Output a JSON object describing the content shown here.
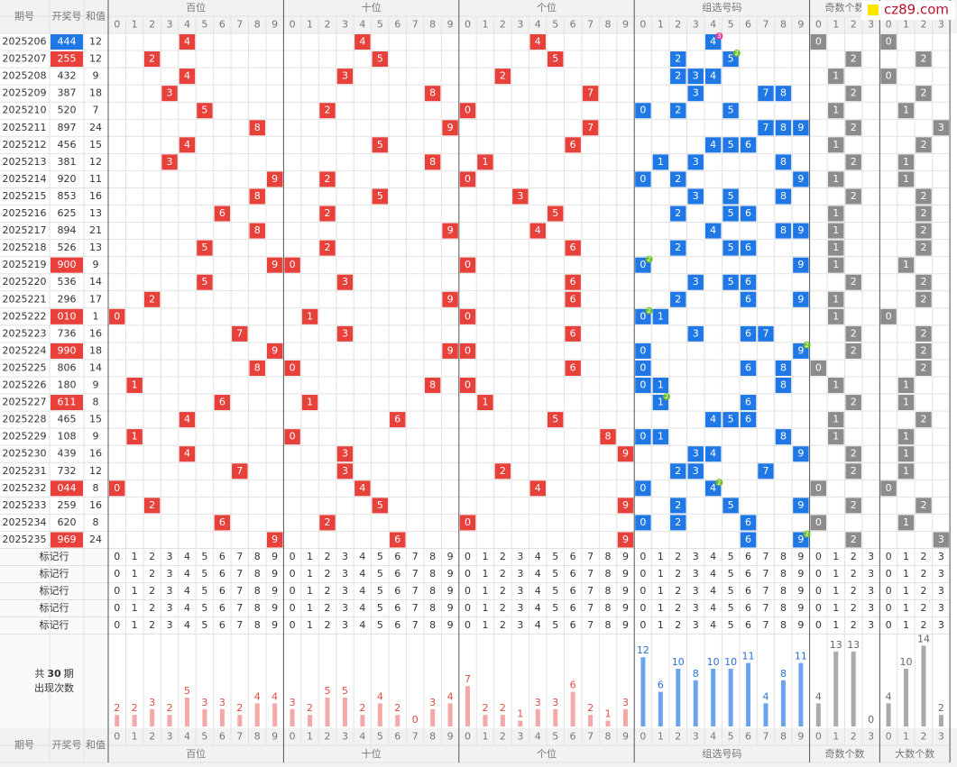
{
  "logo": "cz89.com",
  "headers": {
    "issue": "期号",
    "draw": "开奖号",
    "sum": "和值",
    "groups": [
      "百位",
      "十位",
      "个位",
      "组选号码",
      "奇数个数",
      "大数个数"
    ]
  },
  "digits": [
    0,
    1,
    2,
    3,
    4,
    5,
    6,
    7,
    8,
    9
  ],
  "draws": [
    {
      "issue": "2025206",
      "number": "444",
      "sum": 12
    },
    {
      "issue": "2025207",
      "number": "255",
      "sum": 12
    },
    {
      "issue": "2025208",
      "number": "432",
      "sum": 9
    },
    {
      "issue": "2025209",
      "number": "387",
      "sum": 18
    },
    {
      "issue": "2025210",
      "number": "520",
      "sum": 7
    },
    {
      "issue": "2025211",
      "number": "897",
      "sum": 24
    },
    {
      "issue": "2025212",
      "number": "456",
      "sum": 15
    },
    {
      "issue": "2025213",
      "number": "381",
      "sum": 12
    },
    {
      "issue": "2025214",
      "number": "920",
      "sum": 11
    },
    {
      "issue": "2025215",
      "number": "853",
      "sum": 16
    },
    {
      "issue": "2025216",
      "number": "625",
      "sum": 13
    },
    {
      "issue": "2025217",
      "number": "894",
      "sum": 21
    },
    {
      "issue": "2025218",
      "number": "526",
      "sum": 13
    },
    {
      "issue": "2025219",
      "number": "900",
      "sum": 9
    },
    {
      "issue": "2025220",
      "number": "536",
      "sum": 14
    },
    {
      "issue": "2025221",
      "number": "296",
      "sum": 17
    },
    {
      "issue": "2025222",
      "number": "010",
      "sum": 1
    },
    {
      "issue": "2025223",
      "number": "736",
      "sum": 16
    },
    {
      "issue": "2025224",
      "number": "990",
      "sum": 18
    },
    {
      "issue": "2025225",
      "number": "806",
      "sum": 14
    },
    {
      "issue": "2025226",
      "number": "180",
      "sum": 9
    },
    {
      "issue": "2025227",
      "number": "611",
      "sum": 8
    },
    {
      "issue": "2025228",
      "number": "465",
      "sum": 15
    },
    {
      "issue": "2025229",
      "number": "108",
      "sum": 9
    },
    {
      "issue": "2025230",
      "number": "439",
      "sum": 16
    },
    {
      "issue": "2025231",
      "number": "732",
      "sum": 12
    },
    {
      "issue": "2025232",
      "number": "044",
      "sum": 8
    },
    {
      "issue": "2025233",
      "number": "259",
      "sum": 16
    },
    {
      "issue": "2025234",
      "number": "620",
      "sum": 8
    },
    {
      "issue": "2025235",
      "number": "969",
      "sum": 24
    }
  ],
  "mark_label": "标记行",
  "summary": {
    "prefix": "共",
    "periods": 30,
    "suffix": "期",
    "label": "出现次数"
  },
  "counts": {
    "hundreds": [
      2,
      2,
      3,
      2,
      5,
      3,
      3,
      2,
      4,
      4
    ],
    "tens": [
      3,
      2,
      5,
      5,
      2,
      4,
      2,
      0,
      3,
      4
    ],
    "units": [
      7,
      2,
      2,
      1,
      3,
      3,
      6,
      2,
      1,
      3
    ],
    "group": [
      12,
      6,
      10,
      8,
      10,
      10,
      11,
      4,
      8,
      11
    ],
    "odd": [
      4,
      13,
      13,
      0
    ],
    "big": [
      4,
      10,
      14,
      2
    ]
  }
}
